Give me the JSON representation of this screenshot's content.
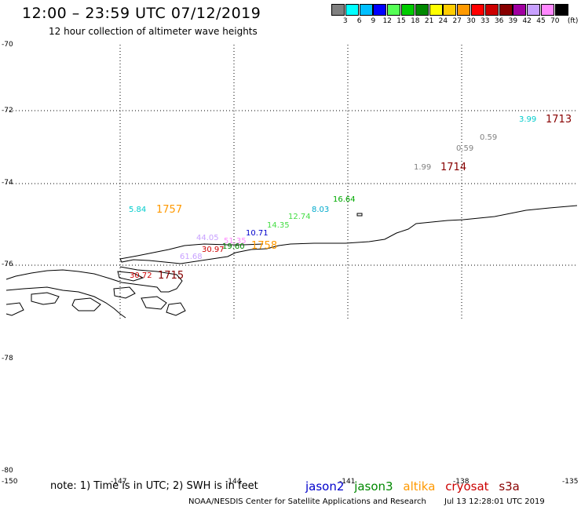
{
  "header": {
    "title": "12:00 – 23:59 UTC 07/12/2019",
    "subtitle": "12 hour collection of altimeter wave heights"
  },
  "color_scale": {
    "unit": "(ft)",
    "labels": [
      "3",
      "6",
      "9",
      "12",
      "15",
      "18",
      "21",
      "24",
      "27",
      "30",
      "33",
      "36",
      "39",
      "42",
      "45",
      "70"
    ],
    "colors": [
      "#808080",
      "#00ffff",
      "#00bfff",
      "#0000ff",
      "#55ff55",
      "#00cc00",
      "#008800",
      "#ffff00",
      "#ffcc00",
      "#ff9900",
      "#ff0000",
      "#cc0000",
      "#880000",
      "#a000a0",
      "#c8a0ff",
      "#ff88ff",
      "#000000"
    ]
  },
  "map": {
    "lat_labels": [
      "-70",
      "-72",
      "-74",
      "-76",
      "-78",
      "-80"
    ],
    "lon_labels": [
      "-150",
      "-147",
      "-144",
      "-141",
      "-138",
      "-135"
    ]
  },
  "observations": [
    {
      "text": "3.99",
      "color": "#00cccc"
    },
    {
      "text": "0.59",
      "color": "#808080"
    },
    {
      "text": "0.59",
      "color": "#808080"
    },
    {
      "text": "1.99",
      "color": "#808080"
    },
    {
      "text": "5.84",
      "color": "#00cccc"
    },
    {
      "text": "16.64",
      "color": "#00aa00"
    },
    {
      "text": "8.03",
      "color": "#00aacc"
    },
    {
      "text": "12.74",
      "color": "#44dd44"
    },
    {
      "text": "14.35",
      "color": "#44dd44"
    },
    {
      "text": "10.71",
      "color": "#0000cc"
    },
    {
      "text": "44.05",
      "color": "#c8a0ff"
    },
    {
      "text": "51.35",
      "color": "#ff88ff"
    },
    {
      "text": "30.97",
      "color": "#cc0000"
    },
    {
      "text": "19.60",
      "color": "#008800"
    },
    {
      "text": "61.68",
      "color": "#c8a0ff"
    },
    {
      "text": "30.72",
      "color": "#cc0000"
    }
  ],
  "times": [
    {
      "text": "1713",
      "color": "#880000"
    },
    {
      "text": "1714",
      "color": "#880000"
    },
    {
      "text": "1757",
      "color": "#ff9900"
    },
    {
      "text": "1758",
      "color": "#ff9900"
    },
    {
      "text": "1715",
      "color": "#880000"
    }
  ],
  "footer": {
    "note": "note: 1) Time is in UTC; 2) SWH is in feet",
    "satellites": [
      {
        "name": "jason2",
        "color": "#0000cc"
      },
      {
        "name": "jason3",
        "color": "#008800"
      },
      {
        "name": "altika",
        "color": "#ff9900"
      },
      {
        "name": "cryosat",
        "color": "#cc0000"
      },
      {
        "name": "s3a",
        "color": "#880000"
      }
    ],
    "credit": "NOAA/NESDIS Center for Satellite Applications and Research",
    "created": "Jul 13 12:28:01 UTC 2019"
  }
}
